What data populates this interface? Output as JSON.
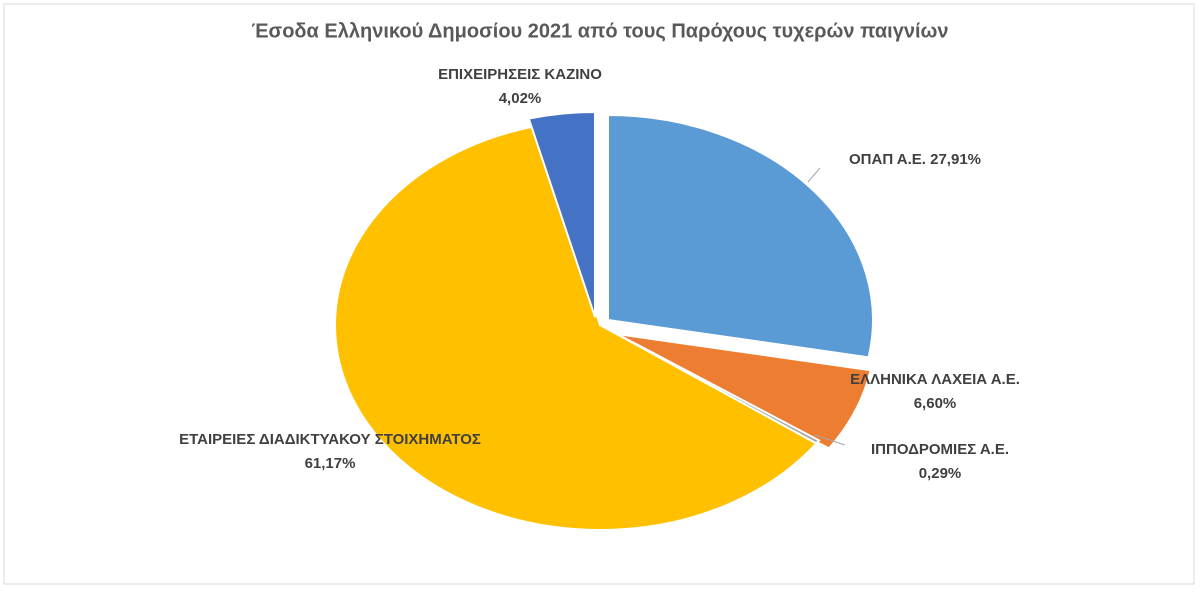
{
  "chart_data": {
    "type": "pie",
    "title": "Έσοδα Ελληνικού Δημοσίου 2021 από τους Παρόχους τυχερών παιγνίων",
    "categories": [
      "ΟΠΑΠ Α.Ε.",
      "ΕΛΛΗΝΙΚΑ ΛΑΧΕΙΑ Α.Ε.",
      "ΙΠΠΟΔΡΟΜΙΕΣ Α.Ε.",
      "ΕΤΑΙΡΕΙΕΣ ΔΙΑΔΙΚΤΥΑΚΟΥ ΣΤΟΙΧΗΜΑΤΟΣ",
      "ΕΠΙΧΕΙΡΗΣΕΙΣ ΚΑΖΙΝΟ"
    ],
    "values": [
      27.91,
      6.6,
      0.29,
      61.17,
      4.02
    ],
    "value_labels": [
      "27,91%",
      "6,60%",
      "0,29%",
      "61,17%",
      "4,02%"
    ],
    "colors": [
      "#5b9bd5",
      "#ed7d31",
      "#a5a5a5",
      "#ffc000",
      "#4472c4"
    ]
  }
}
